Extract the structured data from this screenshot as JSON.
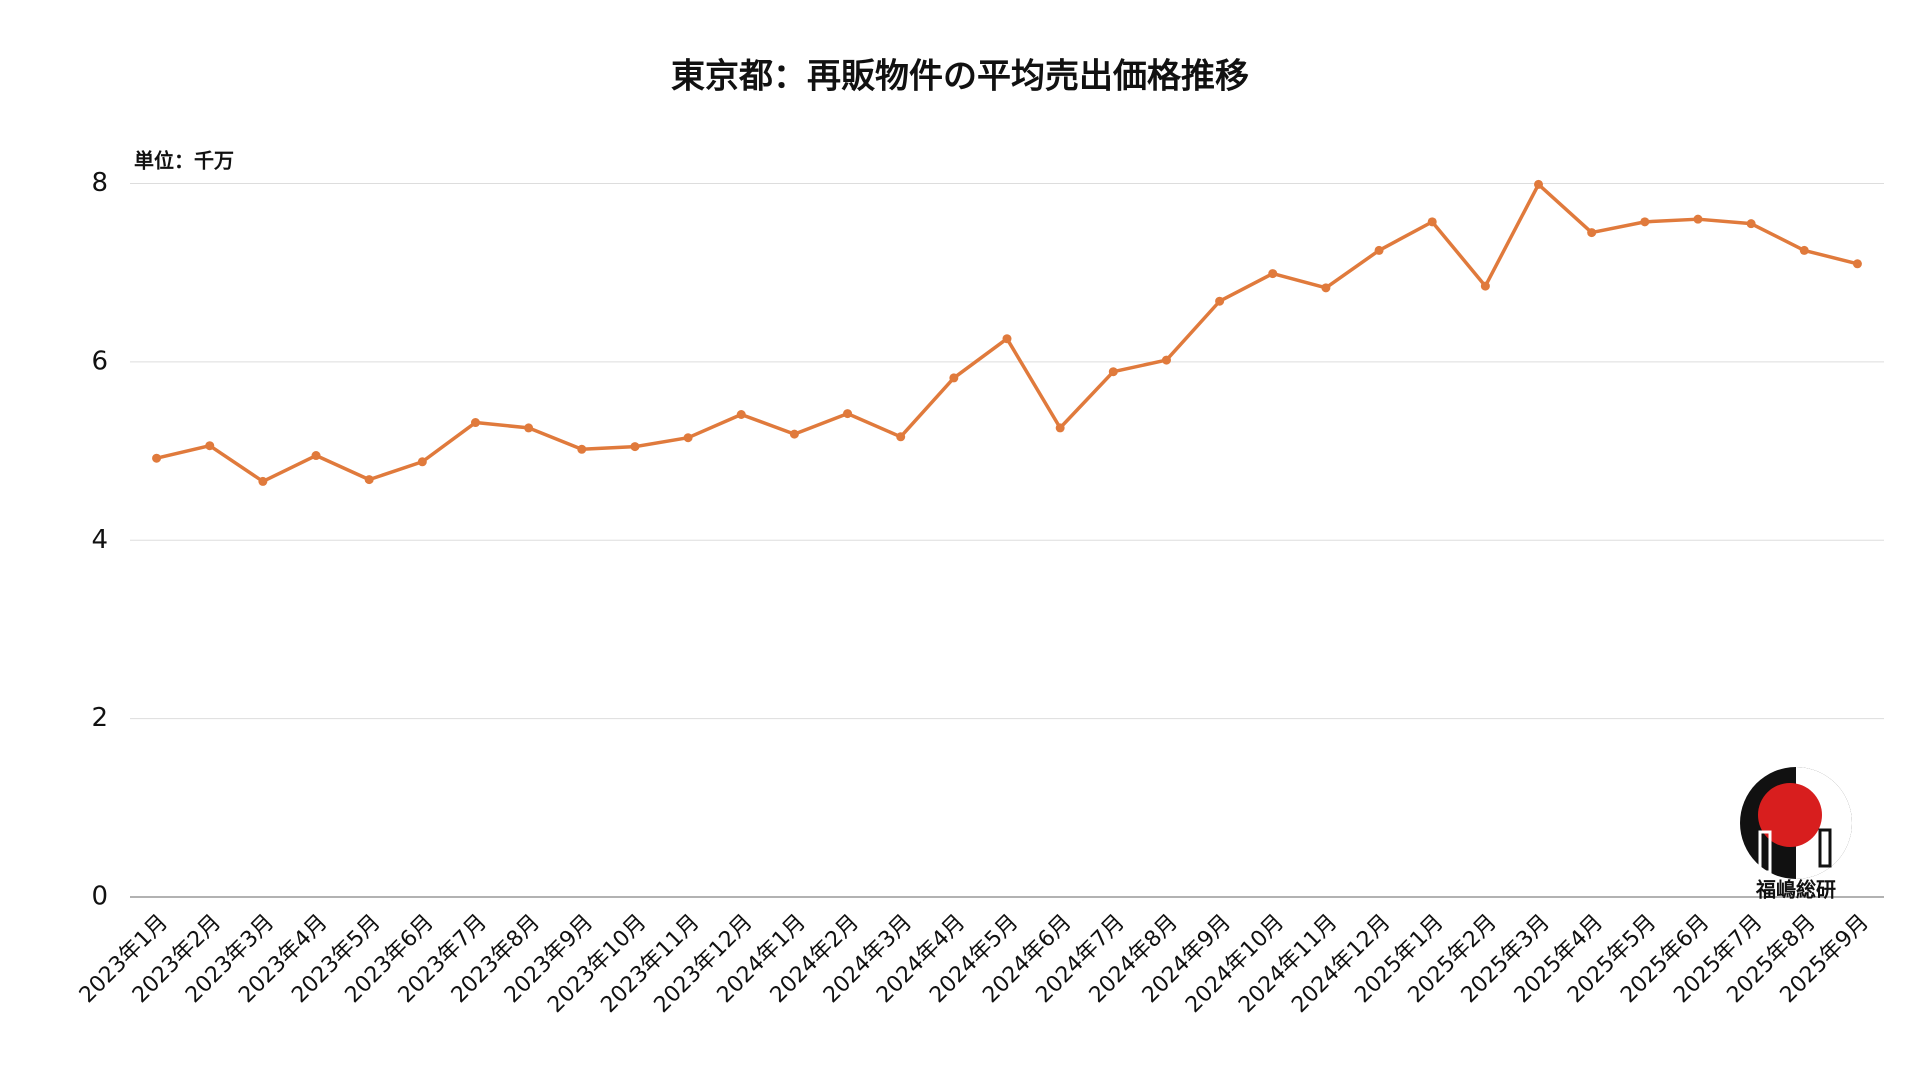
{
  "chart_data": {
    "type": "line",
    "title": "東京都：再販物件の平均売出価格推移",
    "unit_label": "単位：千万",
    "logo_text": "福嶋総研",
    "categories": [
      "2023年1月",
      "2023年2月",
      "2023年3月",
      "2023年4月",
      "2023年5月",
      "2023年6月",
      "2023年7月",
      "2023年8月",
      "2023年9月",
      "2023年10月",
      "2023年11月",
      "2023年12月",
      "2024年1月",
      "2024年2月",
      "2024年3月",
      "2024年4月",
      "2024年5月",
      "2024年6月",
      "2024年7月",
      "2024年8月",
      "2024年9月",
      "2024年10月",
      "2024年11月",
      "2024年12月",
      "2025年1月",
      "2025年2月",
      "2025年3月",
      "2025年4月",
      "2025年5月",
      "2025年6月",
      "2025年7月",
      "2025年8月",
      "2025年9月"
    ],
    "values": [
      4.92,
      5.06,
      4.66,
      4.95,
      4.68,
      4.88,
      5.32,
      5.26,
      5.02,
      5.05,
      5.15,
      5.41,
      5.19,
      5.42,
      5.16,
      5.82,
      6.26,
      5.26,
      5.89,
      6.02,
      6.68,
      6.99,
      6.83,
      7.25,
      7.57,
      6.85,
      7.99,
      7.45,
      7.57,
      7.6,
      7.55,
      7.25,
      7.1
    ],
    "color": "#e07a3c",
    "ylim": [
      0,
      8.6
    ],
    "yticks": [
      0,
      2,
      4,
      6,
      8
    ],
    "grid": true
  }
}
